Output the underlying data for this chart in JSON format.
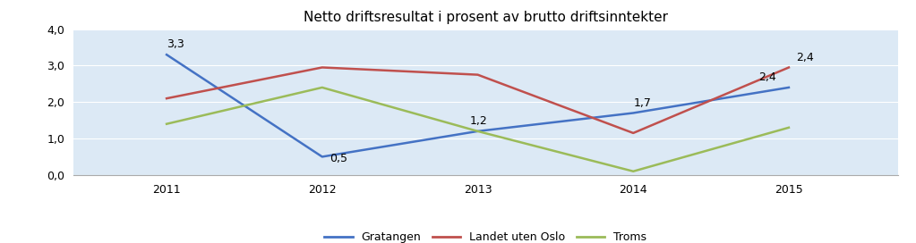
{
  "title": "Netto driftsresultat i prosent av brutto driftsinntekter",
  "years": [
    2011,
    2012,
    2013,
    2014,
    2015
  ],
  "series": {
    "Gratangen": [
      3.3,
      0.5,
      1.2,
      1.7,
      2.4
    ],
    "Landet uten Oslo": [
      2.1,
      2.95,
      2.75,
      1.15,
      2.95
    ],
    "Troms": [
      1.4,
      2.4,
      1.2,
      0.1,
      1.3
    ]
  },
  "colors": {
    "Gratangen": "#4472C4",
    "Landet uten Oslo": "#C0504D",
    "Troms": "#9BBB59"
  },
  "ylim": [
    0.0,
    4.0
  ],
  "yticks": [
    0.0,
    1.0,
    2.0,
    3.0,
    4.0
  ],
  "ytick_labels": [
    "0,0",
    "1,0",
    "2,0",
    "3,0",
    "4,0"
  ],
  "plot_bg_color": "#DCE9F5",
  "outer_bg_color": "#FFFFFF",
  "line_width": 1.8,
  "title_fontsize": 11,
  "tick_fontsize": 9,
  "annotation_fontsize": 9
}
